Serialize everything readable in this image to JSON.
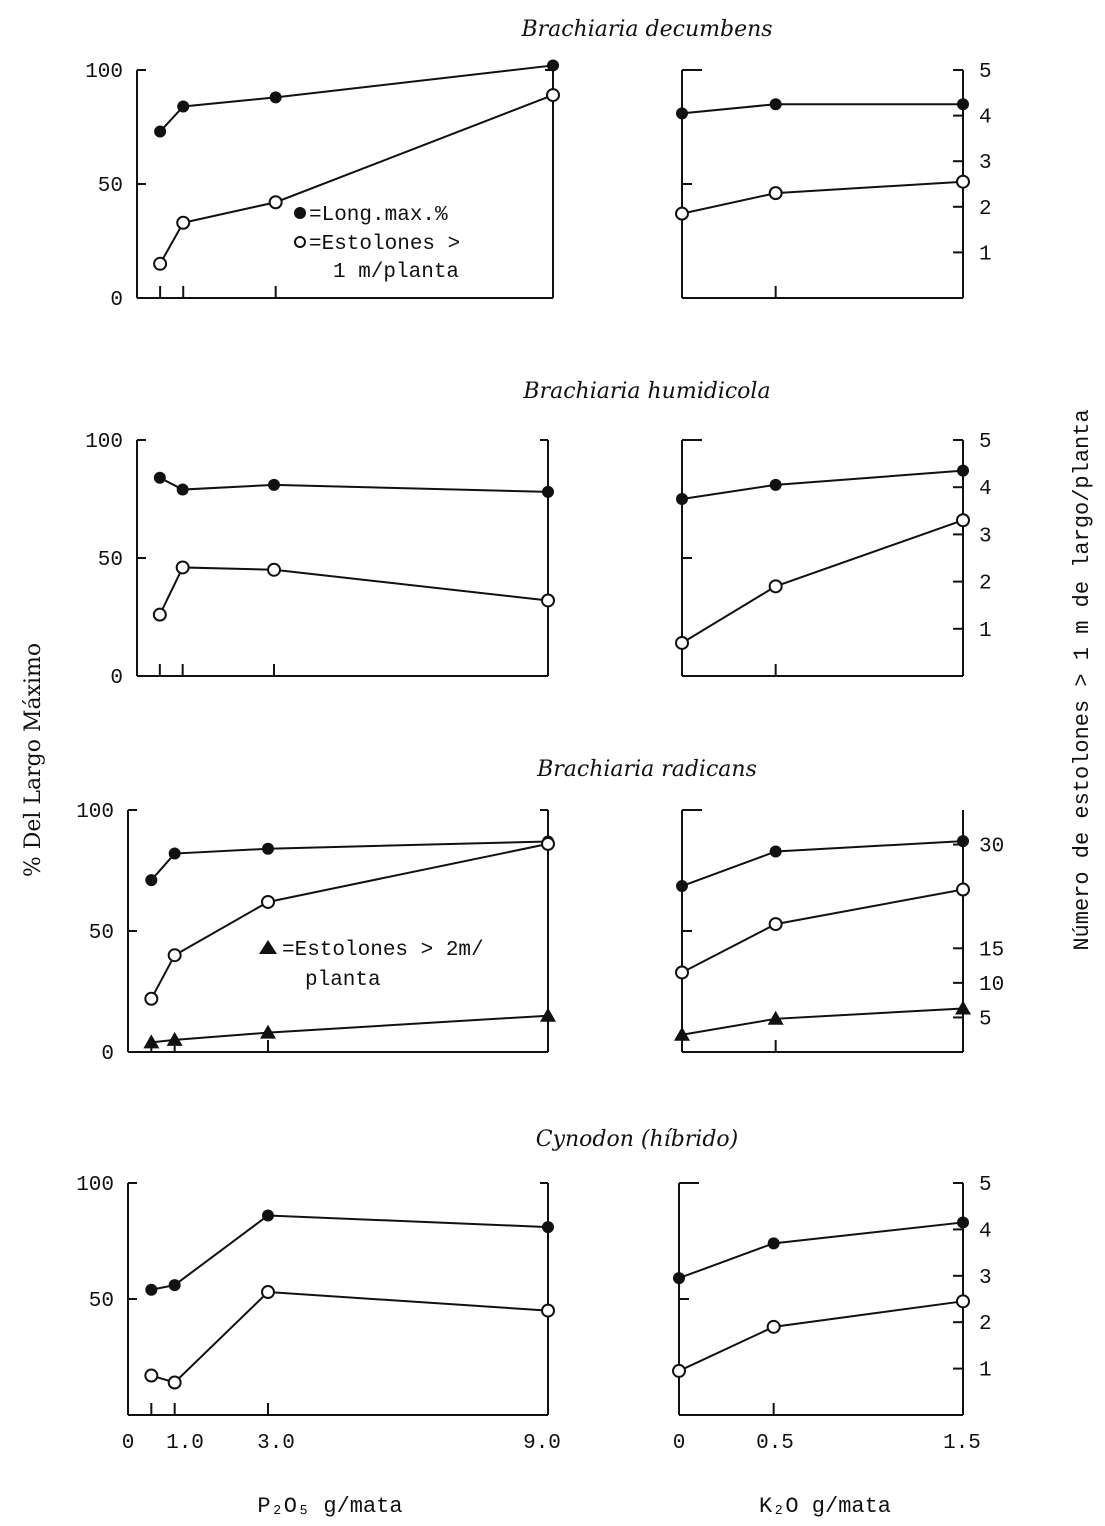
{
  "figure": {
    "left_axis_title": "% Del Largo Máximo",
    "right_axis_title": "Número de estolones > 1 m de largo/planta",
    "x_title_left": "P₂O₅ g/mata",
    "x_title_right": "K₂O  g/mata",
    "x_ticks_left": [
      "0",
      "1.0",
      "3.0",
      "9.0"
    ],
    "x_ticks_right": [
      "0",
      "0.5",
      "1.5"
    ]
  },
  "chart_data": [
    {
      "type": "line",
      "title": "Brachiaria decumbens",
      "panel": "P2O5",
      "yticks": [
        "0",
        "50",
        "100"
      ],
      "ylim": [
        0,
        100
      ],
      "series": [
        {
          "name": "=Long.max.%",
          "marker": "filled-circle",
          "x": [
            0.5,
            1.0,
            3.0,
            9.0
          ],
          "y": [
            73,
            84,
            88,
            102
          ]
        },
        {
          "name": "=Estolones > 1 m/planta",
          "marker": "open-circle",
          "x": [
            0.5,
            1.0,
            3.0,
            9.0
          ],
          "y": [
            15,
            33,
            42,
            89
          ]
        }
      ],
      "legend": [
        "=Long.max.%",
        "=Estolones >",
        "1 m/planta"
      ]
    },
    {
      "type": "line",
      "title": "",
      "panel": "K2O",
      "yticks": [
        "1",
        "2",
        "3",
        "4",
        "5"
      ],
      "ylim": [
        0,
        5
      ],
      "series": [
        {
          "marker": "filled-circle",
          "x": [
            0,
            0.5,
            1.5
          ],
          "y": [
            4.05,
            4.25,
            4.25
          ]
        },
        {
          "marker": "open-circle",
          "x": [
            0,
            0.5,
            1.5
          ],
          "y": [
            1.85,
            2.3,
            2.55
          ]
        }
      ]
    },
    {
      "type": "line",
      "title": "Brachiaria humidicola",
      "panel": "P2O5",
      "yticks": [
        "0",
        "50",
        "100"
      ],
      "ylim": [
        0,
        100
      ],
      "series": [
        {
          "marker": "filled-circle",
          "x": [
            0.5,
            1.0,
            3.0,
            9.0
          ],
          "y": [
            84,
            79,
            81,
            78
          ]
        },
        {
          "marker": "open-circle",
          "x": [
            0.5,
            1.0,
            3.0,
            9.0
          ],
          "y": [
            26,
            46,
            45,
            32
          ]
        }
      ]
    },
    {
      "type": "line",
      "title": "",
      "panel": "K2O",
      "yticks": [
        "1",
        "2",
        "3",
        "4",
        "5"
      ],
      "ylim": [
        0,
        5
      ],
      "series": [
        {
          "marker": "filled-circle",
          "x": [
            0,
            0.5,
            1.5
          ],
          "y": [
            3.75,
            4.05,
            4.35
          ]
        },
        {
          "marker": "open-circle",
          "x": [
            0,
            0.5,
            1.5
          ],
          "y": [
            0.7,
            1.9,
            3.3
          ]
        }
      ]
    },
    {
      "type": "line",
      "title": "Brachiaria radicans",
      "panel": "P2O5",
      "yticks": [
        "0",
        "50",
        "100"
      ],
      "ylim": [
        0,
        100
      ],
      "series": [
        {
          "marker": "filled-circle",
          "x": [
            0.5,
            1.0,
            3.0,
            9.0
          ],
          "y": [
            71,
            82,
            84,
            87
          ]
        },
        {
          "marker": "open-circle",
          "x": [
            0.5,
            1.0,
            3.0,
            9.0
          ],
          "y": [
            22,
            40,
            62,
            86
          ]
        },
        {
          "name": "=Estolones > 2m/ planta",
          "marker": "filled-triangle",
          "x": [
            0.5,
            1.0,
            3.0,
            9.0
          ],
          "y": [
            4,
            5,
            8,
            15
          ]
        }
      ],
      "legend": [
        "=Estolones > 2m/",
        "planta"
      ]
    },
    {
      "type": "line",
      "title": "",
      "panel": "K2O",
      "yticks": [
        "5",
        "10",
        "15",
        "30"
      ],
      "ylim": [
        0,
        35
      ],
      "series": [
        {
          "marker": "filled-circle",
          "x": [
            0,
            0.5,
            1.5
          ],
          "y": [
            24,
            29,
            30.5
          ]
        },
        {
          "marker": "open-circle",
          "x": [
            0,
            0.5,
            1.5
          ],
          "y": [
            11.5,
            18.5,
            23.5
          ]
        },
        {
          "marker": "filled-triangle",
          "x": [
            0,
            0.5,
            1.5
          ],
          "y": [
            2.5,
            4.8,
            6.3
          ]
        }
      ]
    },
    {
      "type": "line",
      "title": "Cynodon (híbrido)",
      "panel": "P2O5",
      "yticks": [
        "50",
        "100"
      ],
      "ylim": [
        0,
        100
      ],
      "series": [
        {
          "marker": "filled-circle",
          "x": [
            0.5,
            1.0,
            3.0,
            9.0
          ],
          "y": [
            54,
            56,
            86,
            81
          ]
        },
        {
          "marker": "open-circle",
          "x": [
            0.5,
            1.0,
            3.0,
            9.0
          ],
          "y": [
            17,
            14,
            53,
            45
          ]
        }
      ]
    },
    {
      "type": "line",
      "title": "",
      "panel": "K2O",
      "yticks": [
        "1",
        "2",
        "3",
        "4",
        "5"
      ],
      "ylim": [
        0,
        5
      ],
      "series": [
        {
          "marker": "filled-circle",
          "x": [
            0,
            0.5,
            1.5
          ],
          "y": [
            2.95,
            3.7,
            4.15
          ]
        },
        {
          "marker": "open-circle",
          "x": [
            0,
            0.5,
            1.5
          ],
          "y": [
            0.95,
            1.9,
            2.45
          ]
        }
      ]
    }
  ]
}
